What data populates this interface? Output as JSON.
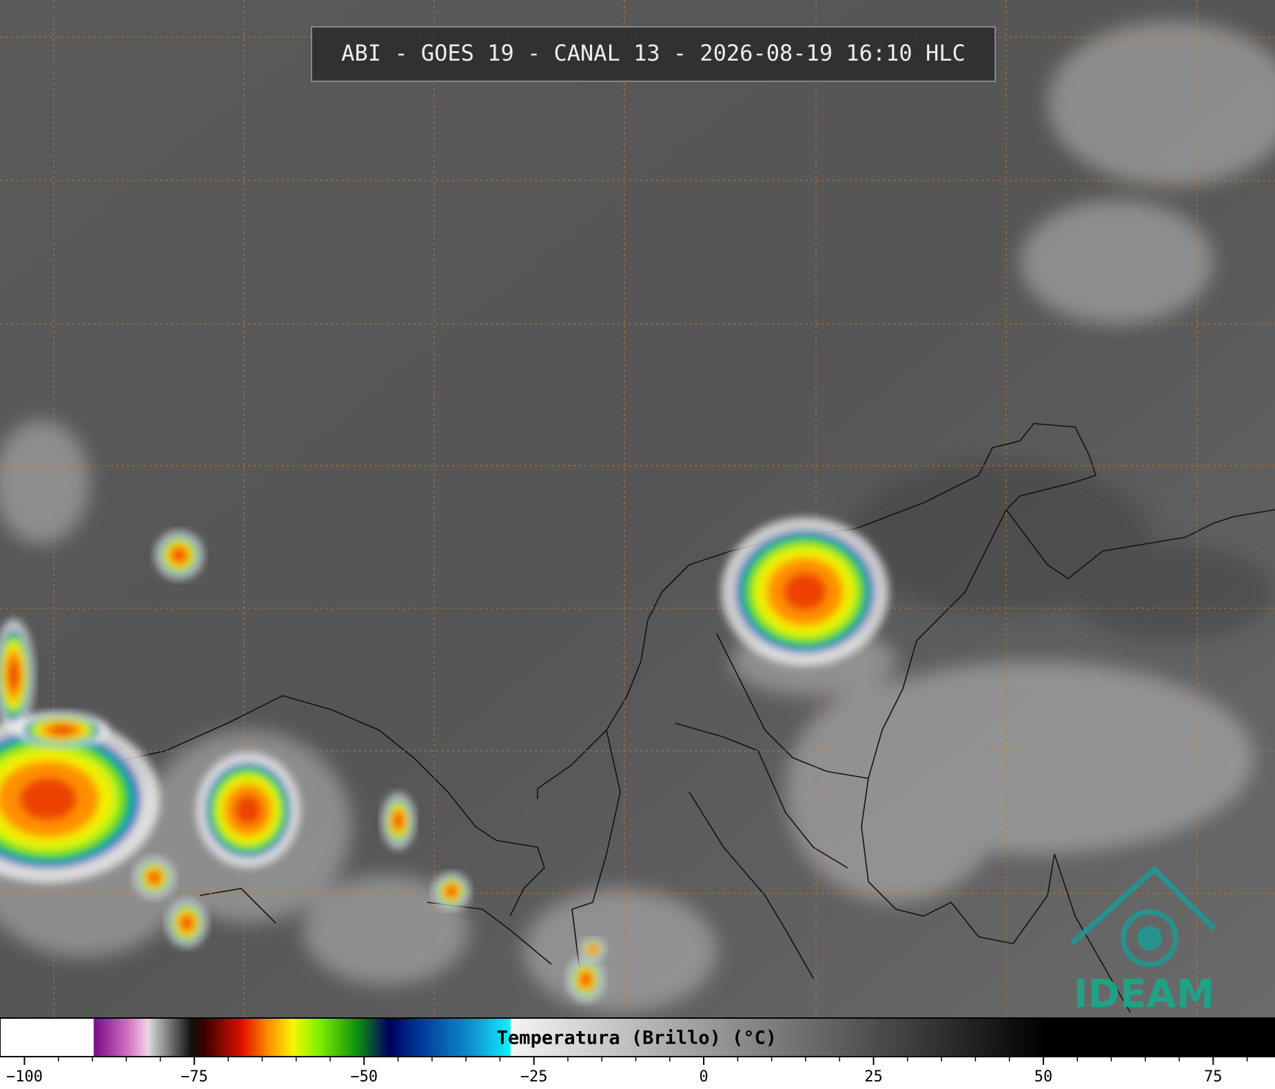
{
  "header": {
    "title": "ABI - GOES 19 - CANAL 13 - 2026-08-19 16:10 HLC"
  },
  "colorbar": {
    "label": "Temperatura (Brillo) (°C)",
    "xlim": [
      -103.6,
      84.1
    ],
    "xticks": [
      {
        "value": -100,
        "label": "−100"
      },
      {
        "value": -75,
        "label": "−75"
      },
      {
        "value": -50,
        "label": "−50"
      },
      {
        "value": -25,
        "label": "−25"
      },
      0,
      25,
      50,
      75
    ]
  },
  "logo": {
    "text": "IDEAM"
  }
}
